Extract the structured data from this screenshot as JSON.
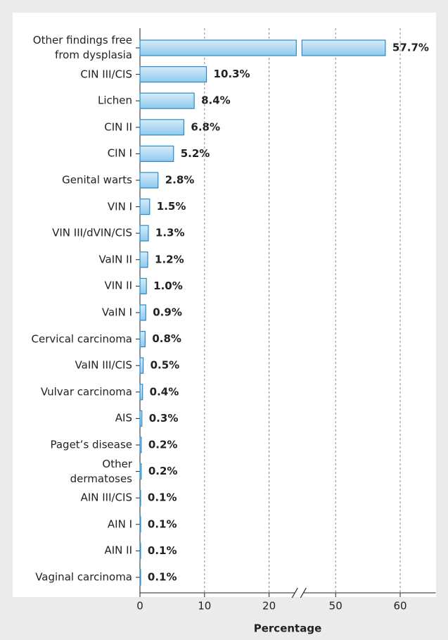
{
  "chart_data": {
    "type": "barh",
    "categories": [
      "Other findings free\nfrom dysplasia",
      "CIN III/CIS",
      "Lichen",
      "CIN II",
      "CIN I",
      "Genital warts",
      "VIN I",
      "VIN III/dVIN/CIS",
      "VaIN II",
      "VIN II",
      "VaIN I",
      "Cervical carcinoma",
      "VaIN III/CIS",
      "Vulvar carcinoma",
      "AIS",
      "Paget’s disease",
      "Other\ndermatoses",
      "AIN III/CIS",
      "AIN I",
      "AIN II",
      "Vaginal carcinoma"
    ],
    "values": [
      57.7,
      10.3,
      8.4,
      6.8,
      5.2,
      2.8,
      1.5,
      1.3,
      1.2,
      1.0,
      0.9,
      0.8,
      0.5,
      0.4,
      0.3,
      0.2,
      0.2,
      0.1,
      0.1,
      0.1,
      0.1
    ],
    "value_labels": [
      "57.7%",
      "10.3%",
      "8.4%",
      "6.8%",
      "5.2%",
      "2.8%",
      "1.5%",
      "1.3%",
      "1.2%",
      "1.0%",
      "0.9%",
      "0.8%",
      "0.5%",
      "0.4%",
      "0.3%",
      "0.2%",
      "0.2%",
      "0.1%",
      "0.1%",
      "0.1%",
      "0.1%"
    ],
    "color": "#2a8ac8",
    "xlabel": "Percentage",
    "xlim": [
      0,
      65.5
    ],
    "axis_break": [
      24,
      45
    ],
    "xticks": [
      0,
      10,
      20,
      50,
      60
    ],
    "grid": true
  }
}
